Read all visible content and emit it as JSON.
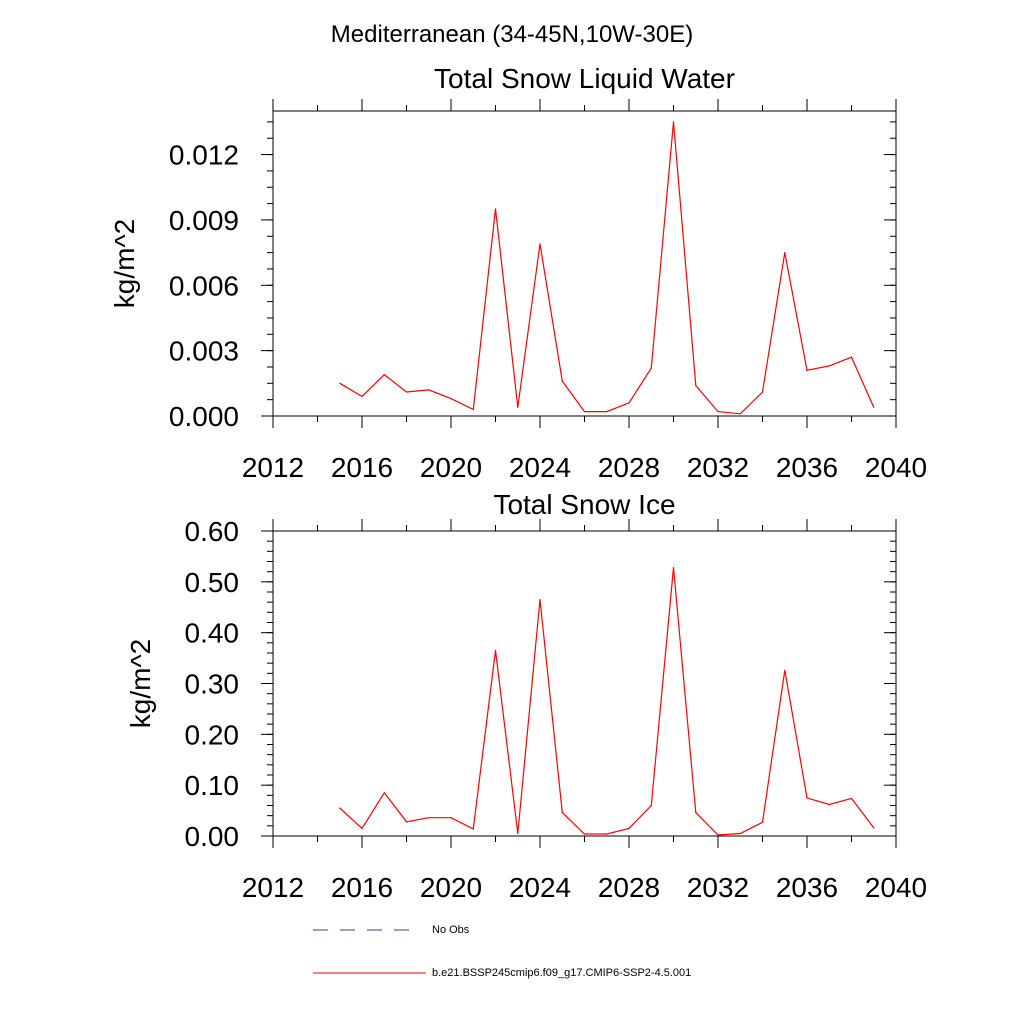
{
  "page_title": "Mediterranean (34-45N,10W-30E)",
  "colors": {
    "series": "#ff0000",
    "no_obs": "#3b3b8f",
    "axis": "#000000",
    "background": "#ffffff"
  },
  "legend": {
    "placement": "bottom",
    "entries": [
      {
        "label": "No Obs",
        "style": "dashed",
        "color": "#3b3b8f"
      },
      {
        "label": "b.e21.BSSP245cmip6.f09_g17.CMIP6-SSP2-4.5.001",
        "style": "solid",
        "color": "#ff0000"
      }
    ]
  },
  "chart_data": [
    {
      "type": "line",
      "title": "Total Snow Liquid Water",
      "xlabel": "",
      "ylabel": "kg/m^2",
      "xlim": [
        2012,
        2040
      ],
      "ylim": [
        0,
        0.014
      ],
      "x_ticks": [
        "2012",
        "2016",
        "2020",
        "2024",
        "2028",
        "2032",
        "2036",
        "2040"
      ],
      "y_ticks": [
        "0.000",
        "0.003",
        "0.006",
        "0.009",
        "0.012"
      ],
      "grid": false,
      "x": [
        2015,
        2016,
        2017,
        2018,
        2019,
        2020,
        2021,
        2022,
        2023,
        2024,
        2025,
        2026,
        2027,
        2028,
        2029,
        2030,
        2031,
        2032,
        2033,
        2034,
        2035,
        2036,
        2037,
        2038,
        2039
      ],
      "series": [
        {
          "name": "b.e21.BSSP245cmip6.f09_g17.CMIP6-SSP2-4.5.001",
          "values": [
            0.0015,
            0.0009,
            0.0019,
            0.0011,
            0.0012,
            0.0008,
            0.0003,
            0.0095,
            0.0004,
            0.0079,
            0.0016,
            0.0002,
            0.0002,
            0.0006,
            0.0022,
            0.0135,
            0.0014,
            0.0002,
            0.0001,
            0.0011,
            0.0075,
            0.0021,
            0.0023,
            0.0027,
            0.0004
          ]
        }
      ]
    },
    {
      "type": "line",
      "title": "Total Snow Ice",
      "xlabel": "",
      "ylabel": "kg/m^2",
      "xlim": [
        2012,
        2040
      ],
      "ylim": [
        0,
        0.6
      ],
      "x_ticks": [
        "2012",
        "2016",
        "2020",
        "2024",
        "2028",
        "2032",
        "2036",
        "2040"
      ],
      "y_ticks": [
        "0.00",
        "0.10",
        "0.20",
        "0.30",
        "0.40",
        "0.50",
        "0.60"
      ],
      "grid": false,
      "x": [
        2015,
        2016,
        2017,
        2018,
        2019,
        2020,
        2021,
        2022,
        2023,
        2024,
        2025,
        2026,
        2027,
        2028,
        2029,
        2030,
        2031,
        2032,
        2033,
        2034,
        2035,
        2036,
        2037,
        2038,
        2039
      ],
      "series": [
        {
          "name": "b.e21.BSSP245cmip6.f09_g17.CMIP6-SSP2-4.5.001",
          "values": [
            0.055,
            0.015,
            0.085,
            0.028,
            0.036,
            0.036,
            0.014,
            0.365,
            0.005,
            0.465,
            0.046,
            0.004,
            0.004,
            0.015,
            0.06,
            0.528,
            0.046,
            0.002,
            0.005,
            0.027,
            0.326,
            0.075,
            0.062,
            0.074,
            0.016
          ]
        }
      ]
    }
  ]
}
